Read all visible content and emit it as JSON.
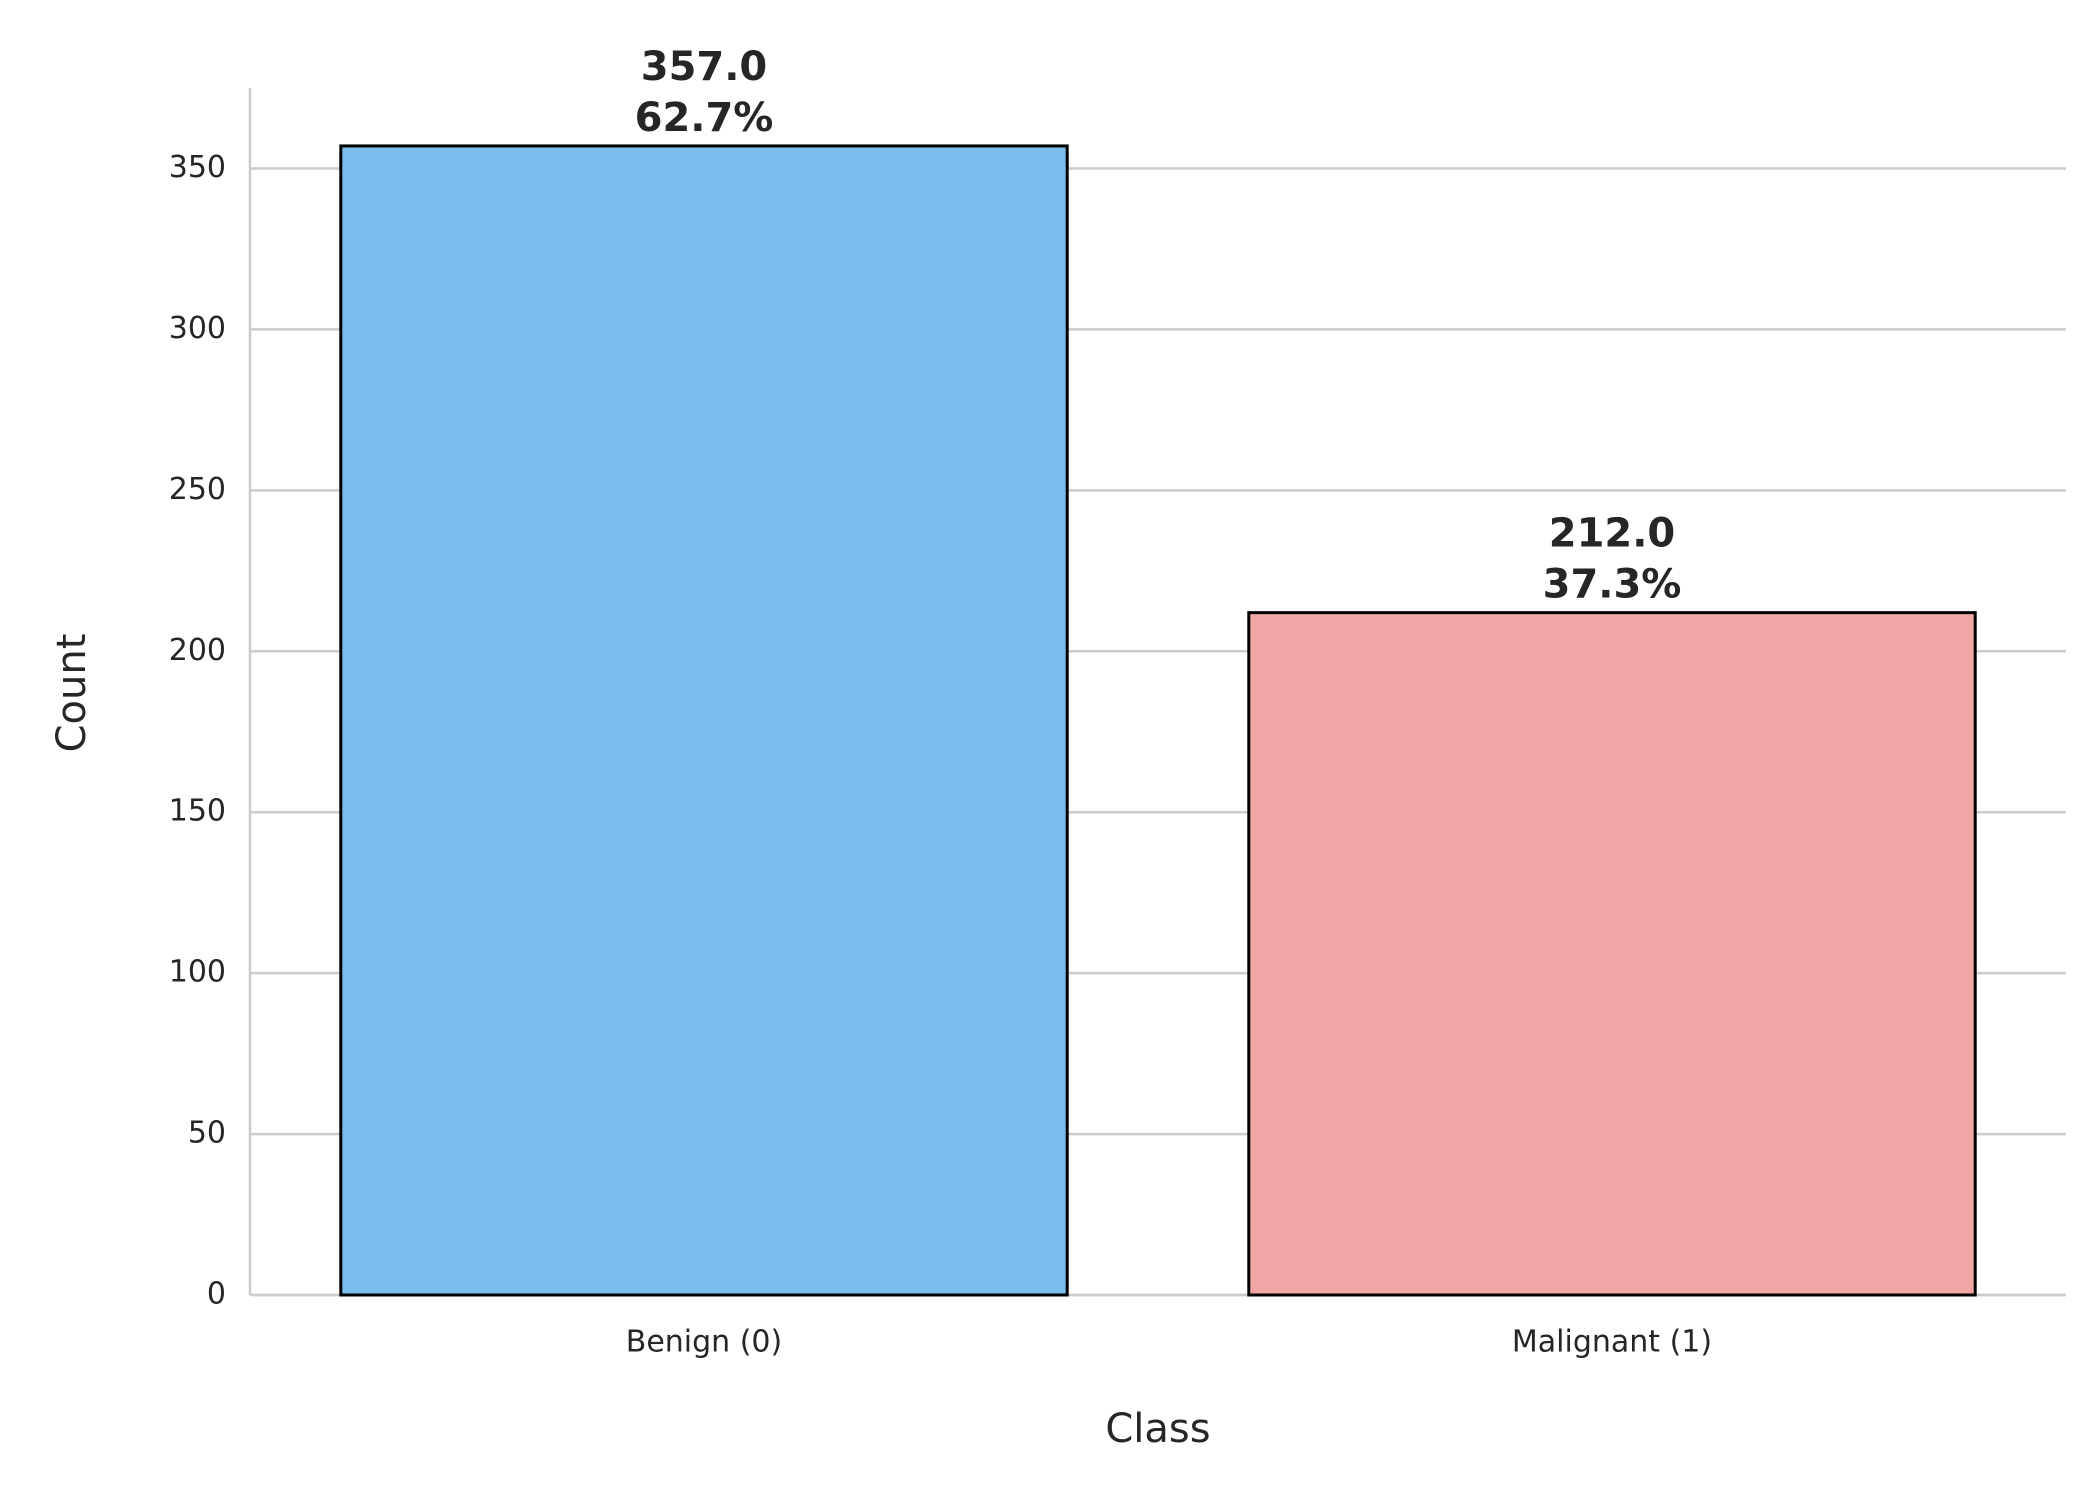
{
  "chart_data": {
    "type": "bar",
    "categories": [
      "Benign (0)",
      "Malignant (1)"
    ],
    "values": [
      357,
      212
    ],
    "value_labels": [
      "357.0",
      "212.0"
    ],
    "percent_labels": [
      "62.7%",
      "37.3%"
    ],
    "colors": [
      "#7bbdec",
      "#f2a7a7"
    ],
    "xlabel": "Class",
    "ylabel": "Count",
    "ylim": [
      0,
      375
    ],
    "yticks": [
      0,
      50,
      100,
      150,
      200,
      250,
      300,
      350
    ],
    "grid": true
  }
}
